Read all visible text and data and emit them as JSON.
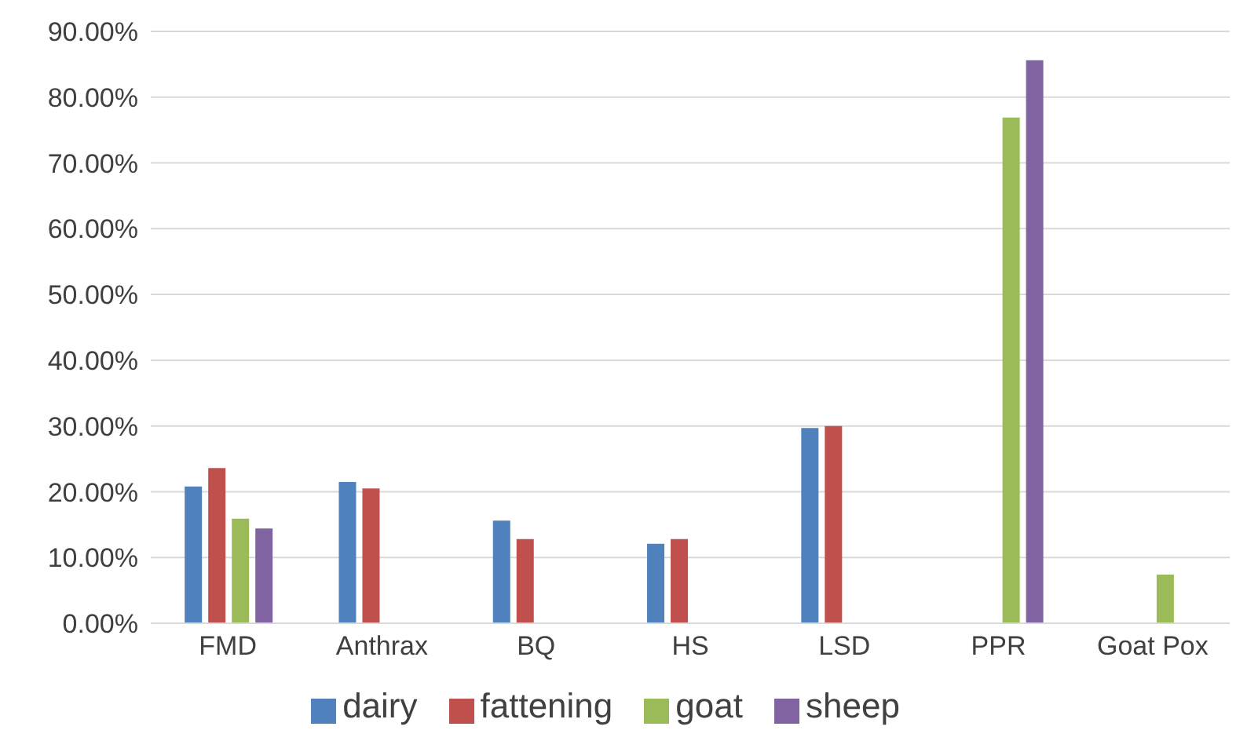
{
  "chart_data": {
    "type": "bar",
    "categories": [
      "FMD",
      "Anthrax",
      "BQ",
      "HS",
      "LSD",
      "PPR",
      "Goat Pox"
    ],
    "series": [
      {
        "name": "dairy",
        "color": "#4f81bd",
        "values": [
          20.8,
          21.5,
          15.6,
          12.1,
          29.7,
          null,
          null
        ]
      },
      {
        "name": "fattening",
        "color": "#c0504d",
        "values": [
          23.6,
          20.5,
          12.8,
          12.8,
          30.0,
          null,
          null
        ]
      },
      {
        "name": "goat",
        "color": "#9bbb59",
        "values": [
          15.9,
          null,
          null,
          null,
          null,
          76.9,
          7.4
        ]
      },
      {
        "name": "sheep",
        "color": "#8064a2",
        "values": [
          14.4,
          null,
          null,
          null,
          null,
          85.6,
          null
        ]
      }
    ],
    "ylim": [
      0,
      90
    ],
    "yticks": [
      {
        "value": 0,
        "label": "0.00%"
      },
      {
        "value": 10,
        "label": "10.00%"
      },
      {
        "value": 20,
        "label": "20.00%"
      },
      {
        "value": 30,
        "label": "30.00%"
      },
      {
        "value": 40,
        "label": "40.00%"
      },
      {
        "value": 50,
        "label": "50.00%"
      },
      {
        "value": 60,
        "label": "60.00%"
      },
      {
        "value": 70,
        "label": "70.00%"
      },
      {
        "value": 80,
        "label": "80.00%"
      },
      {
        "value": 90,
        "label": "90.00%"
      }
    ],
    "grid": "y",
    "legend": "bottom"
  }
}
